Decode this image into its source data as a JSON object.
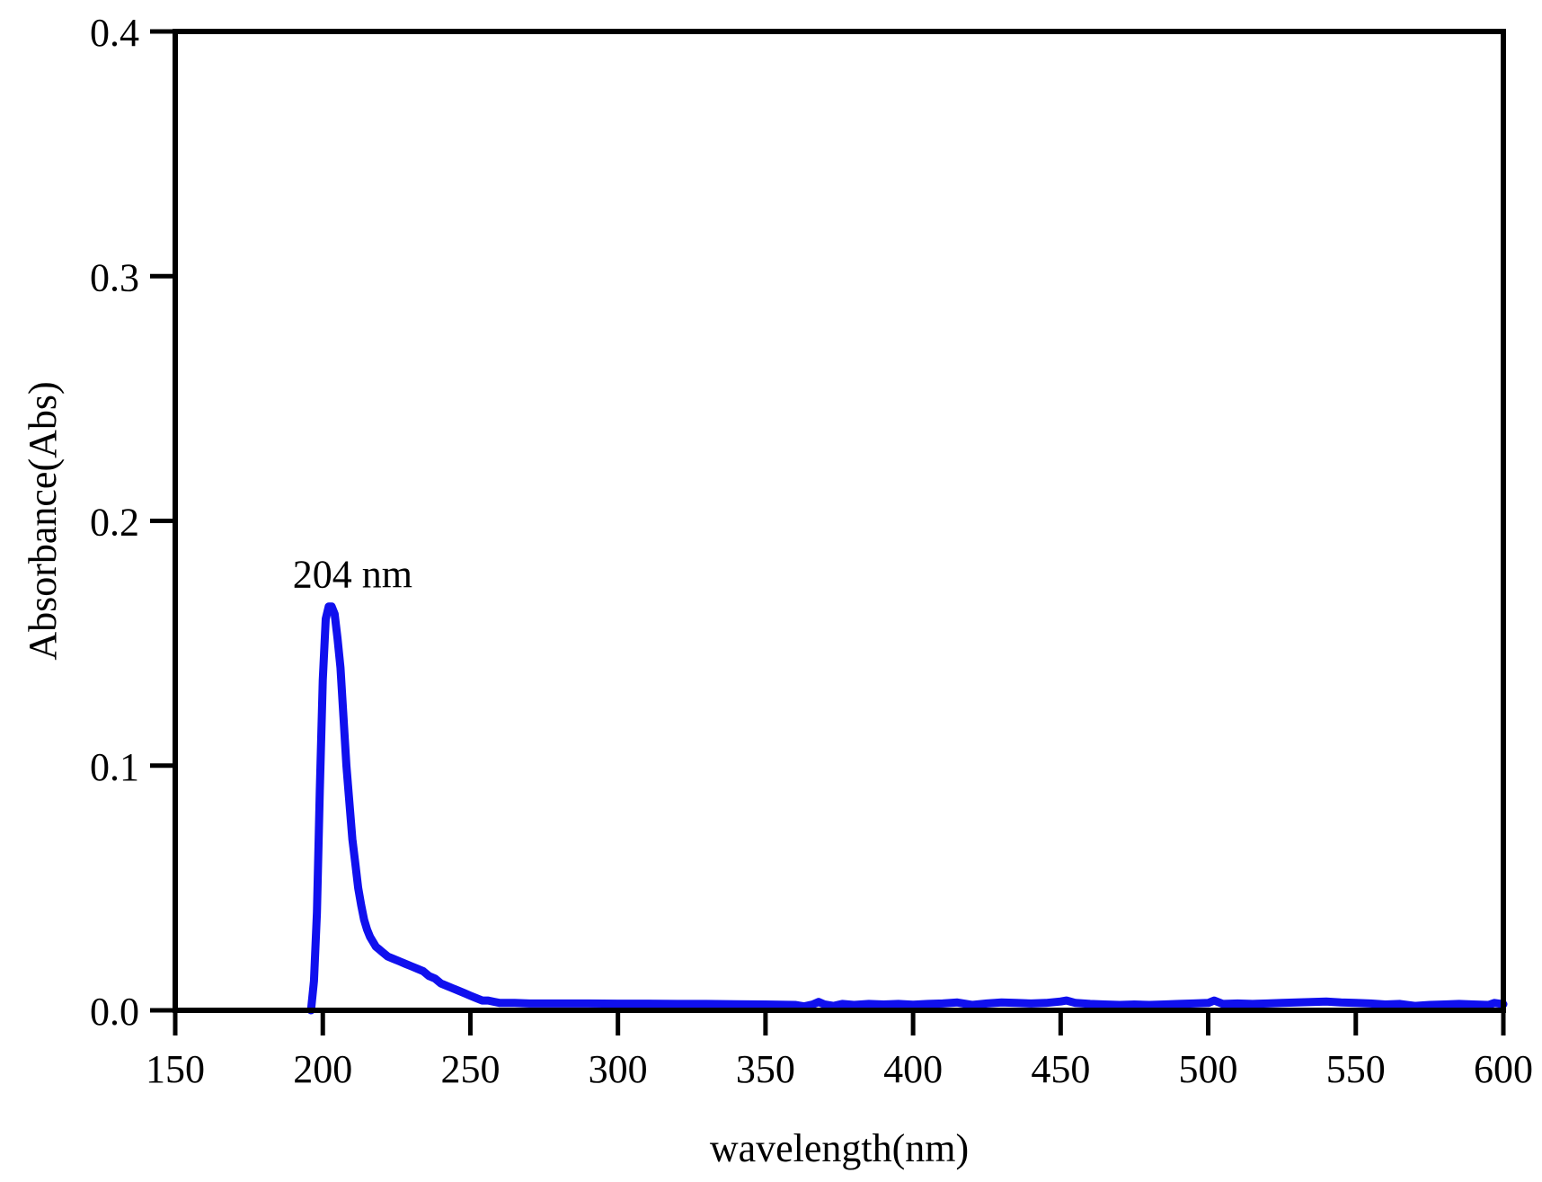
{
  "chart_data": {
    "type": "line",
    "title": "",
    "xlabel": "wavelength(nm)",
    "ylabel": "Absorbance(Abs)",
    "xlim": [
      150,
      600
    ],
    "ylim": [
      0.0,
      0.4
    ],
    "x_ticks": [
      150,
      200,
      250,
      300,
      350,
      400,
      450,
      500,
      550,
      600
    ],
    "x_tick_labels": [
      "150",
      "200",
      "250",
      "300",
      "350",
      "400",
      "450",
      "500",
      "550",
      "600"
    ],
    "y_ticks": [
      0.0,
      0.1,
      0.2,
      0.3,
      0.4
    ],
    "y_tick_labels": [
      "0.0",
      "0.1",
      "0.2",
      "0.3",
      "0.4"
    ],
    "grid": false,
    "legend": "none",
    "line_color": "#1010ee",
    "annotations": [
      {
        "text": "204 nm",
        "x": 204,
        "y": 0.178
      }
    ],
    "series": [
      {
        "x": [
          196,
          197,
          198,
          199,
          200,
          201,
          202,
          203,
          204,
          205,
          206,
          207,
          208,
          209,
          210,
          211,
          212,
          213,
          214,
          215,
          216,
          217,
          218,
          219,
          220,
          222,
          224,
          226,
          228,
          230,
          232,
          234,
          236,
          238,
          240,
          242,
          244,
          246,
          248,
          250,
          252,
          254,
          256,
          258,
          260,
          265,
          270,
          280,
          290,
          300,
          310,
          320,
          330,
          340,
          350,
          355,
          360,
          363,
          366,
          368,
          370,
          373,
          376,
          380,
          385,
          390,
          395,
          400,
          405,
          410,
          415,
          420,
          425,
          430,
          435,
          440,
          445,
          450,
          452,
          455,
          460,
          465,
          470,
          475,
          480,
          485,
          490,
          495,
          500,
          502,
          505,
          510,
          515,
          520,
          525,
          530,
          535,
          540,
          545,
          550,
          555,
          560,
          565,
          570,
          575,
          580,
          585,
          590,
          595,
          597,
          600
        ],
        "y": [
          0.0,
          0.012,
          0.04,
          0.09,
          0.135,
          0.16,
          0.165,
          0.165,
          0.162,
          0.152,
          0.14,
          0.12,
          0.1,
          0.085,
          0.07,
          0.06,
          0.05,
          0.043,
          0.037,
          0.033,
          0.03,
          0.028,
          0.026,
          0.025,
          0.024,
          0.022,
          0.021,
          0.02,
          0.019,
          0.018,
          0.017,
          0.016,
          0.014,
          0.013,
          0.011,
          0.01,
          0.009,
          0.008,
          0.007,
          0.006,
          0.005,
          0.004,
          0.004,
          0.0035,
          0.003,
          0.003,
          0.0028,
          0.0028,
          0.0028,
          0.0027,
          0.0027,
          0.0026,
          0.0026,
          0.0025,
          0.0024,
          0.0023,
          0.0022,
          0.0016,
          0.0024,
          0.0034,
          0.0024,
          0.0018,
          0.0026,
          0.0022,
          0.0026,
          0.0024,
          0.0026,
          0.0023,
          0.0026,
          0.0028,
          0.0032,
          0.0022,
          0.0028,
          0.0032,
          0.003,
          0.0028,
          0.003,
          0.0036,
          0.004,
          0.003,
          0.0026,
          0.0024,
          0.0022,
          0.0024,
          0.0022,
          0.0024,
          0.0026,
          0.0028,
          0.003,
          0.004,
          0.0026,
          0.0028,
          0.0026,
          0.0028,
          0.003,
          0.0032,
          0.0034,
          0.0036,
          0.0032,
          0.003,
          0.0028,
          0.0024,
          0.0026,
          0.0018,
          0.0022,
          0.0024,
          0.0026,
          0.0024,
          0.0022,
          0.003,
          0.0025
        ]
      }
    ]
  }
}
